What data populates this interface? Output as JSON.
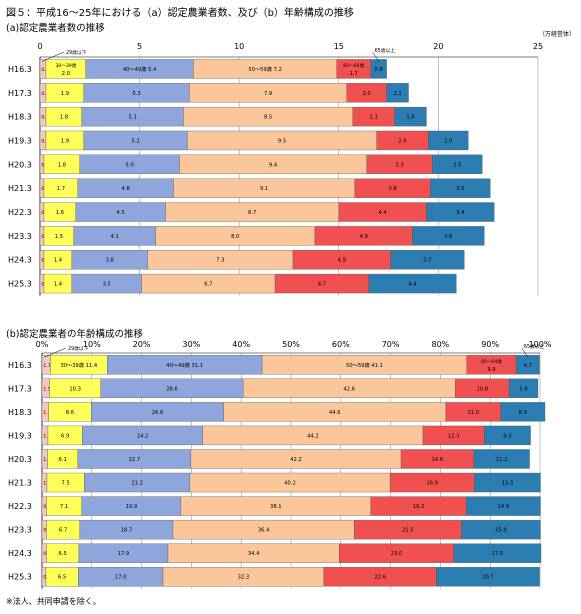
{
  "figure_title": "図５：平成16～25年における（a）認定農業者数、及び（b）年齢構成の推移",
  "footnote": "※法人、共同申請を除く。",
  "colors": [
    "#f5c7be",
    "#ffff5a",
    "#8fa6dc",
    "#fbc79a",
    "#f05050",
    "#2c7db2"
  ],
  "chart_data": [
    {
      "type": "bar",
      "orientation": "horizontal",
      "stacked": true,
      "title": "(a)認定農業者数の推移",
      "unit": "（万経営体）",
      "xlim": [
        0,
        25
      ],
      "xticks": [
        "0",
        "5",
        "10",
        "15",
        "20",
        "25"
      ],
      "grid": true,
      "categories": [
        "H16.3",
        "H17.3",
        "H18.3",
        "H19.3",
        "H20.3",
        "H21.3",
        "H22.3",
        "H23.3",
        "H24.3",
        "H25.3"
      ],
      "series": [
        {
          "name": "29歳以下",
          "values": [
            0.3,
            0.3,
            0.3,
            0.3,
            0.2,
            0.2,
            0.2,
            0.2,
            0.2,
            0.2
          ]
        },
        {
          "name": "30～39歳",
          "values": [
            2.0,
            1.9,
            1.8,
            1.9,
            1.8,
            1.7,
            1.6,
            1.5,
            1.4,
            1.4
          ]
        },
        {
          "name": "40～49歳",
          "values": [
            5.4,
            5.3,
            5.1,
            5.2,
            5.0,
            4.8,
            4.5,
            4.1,
            3.8,
            3.5
          ]
        },
        {
          "name": "50～59歳",
          "values": [
            7.2,
            7.9,
            8.5,
            9.5,
            9.4,
            9.1,
            8.7,
            8.0,
            7.3,
            6.7
          ]
        },
        {
          "name": "60～64歳",
          "values": [
            1.7,
            2.0,
            2.1,
            2.6,
            3.3,
            3.8,
            4.4,
            4.9,
            4.9,
            4.7
          ]
        },
        {
          "name": "65歳以上",
          "values": [
            0.8,
            1.1,
            1.6,
            2.0,
            2.5,
            3.0,
            3.4,
            3.6,
            3.7,
            4.4
          ]
        }
      ],
      "callouts": [
        "29歳以下",
        "30～39歳",
        "40～49歳",
        "50～59歳",
        "60～64歳",
        "65歳以上"
      ]
    },
    {
      "type": "bar",
      "orientation": "horizontal",
      "stacked": true,
      "percent": true,
      "title": "(b)認定農業者の年齢構成の推移",
      "xlim": [
        0,
        100
      ],
      "xticks": [
        "0%",
        "10%",
        "20%",
        "30%",
        "40%",
        "50%",
        "60%",
        "70%",
        "80%",
        "90%",
        "100%"
      ],
      "grid": true,
      "categories": [
        "H16.3",
        "H17.3",
        "H18.3",
        "H19.3",
        "H20.3",
        "H21.3",
        "H22.3",
        "H23.3",
        "H24.3",
        "H25.3"
      ],
      "series": [
        {
          "name": "29歳以下",
          "values": [
            1.7,
            1.5,
            1.3,
            1.2,
            1.1,
            1.0,
            0.9,
            0.9,
            0.9,
            0.8
          ]
        },
        {
          "name": "30～39歳",
          "values": [
            11.4,
            10.3,
            8.6,
            6.9,
            6.1,
            7.5,
            7.1,
            6.7,
            6.5,
            6.5
          ]
        },
        {
          "name": "40～49歳",
          "values": [
            31.1,
            28.6,
            26.6,
            24.2,
            22.7,
            21.2,
            19.9,
            18.7,
            17.9,
            17.0
          ]
        },
        {
          "name": "50～59歳",
          "values": [
            41.1,
            42.6,
            44.6,
            44.2,
            42.2,
            40.2,
            38.1,
            36.4,
            34.4,
            32.3
          ]
        },
        {
          "name": "60～64歳",
          "values": [
            9.9,
            10.8,
            11.0,
            12.3,
            14.6,
            16.9,
            19.2,
            21.5,
            23.0,
            22.6
          ]
        },
        {
          "name": "65歳以上",
          "values": [
            4.7,
            5.8,
            8.9,
            9.3,
            11.2,
            13.3,
            14.9,
            15.9,
            17.5,
            20.7
          ]
        }
      ],
      "callouts": [
        "29歳以下",
        "30～39歳",
        "40～49歳",
        "50～59歳",
        "60～64歳",
        "65歳以上"
      ]
    }
  ]
}
